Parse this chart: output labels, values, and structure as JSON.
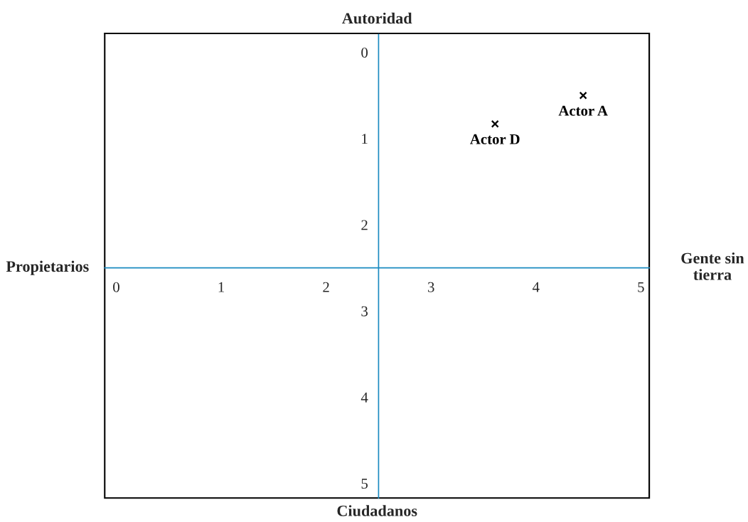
{
  "chart_data": {
    "type": "scatter",
    "title": "Autoridad",
    "xlabel": "Ciudadanos",
    "annotations": [
      "Propietarios",
      "Gente sin tierra"
    ],
    "xlim": [
      -0.11,
      5.08
    ],
    "ylim": [
      5.17,
      -0.22
    ],
    "xticks": [
      0,
      1,
      2,
      3,
      4,
      5
    ],
    "yticks": [
      0,
      1,
      2,
      3,
      4,
      5
    ],
    "marker": "cross",
    "grid": false,
    "legend": false,
    "series": [
      {
        "name": "Actor A",
        "color": "#000000",
        "x": [
          4.45
        ],
        "values": [
          0.5
        ]
      },
      {
        "name": "Actor D",
        "color": "#000000",
        "x": [
          3.61
        ],
        "values": [
          0.83
        ]
      }
    ]
  }
}
